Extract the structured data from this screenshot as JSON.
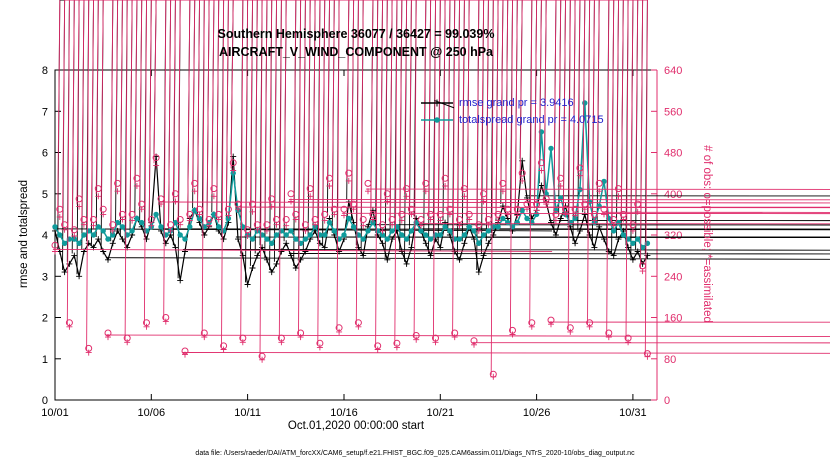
{
  "page": {
    "caption": "data file: /Users/raeder/DAI/ATM_forcXX/CAM6_setup/f.e21.FHIST_BGC.f09_025.CAM6assim.011/Diags_NTrS_2020-10/obs_diag_output.nc"
  },
  "chart_data": {
    "type": "line",
    "title": "Southern Hemisphere 36077 / 36427 = 99.039%",
    "subtitle": "AIRCRAFT_V_WIND_COMPONENT @ 250 hPa",
    "xlabel": "Oct.01,2020 00:00:00 start",
    "legend_text_color": "#2323cc",
    "left_axis": {
      "label": "rmse and totalspread",
      "lim": [
        0,
        8
      ],
      "ticks": [
        0,
        1,
        2,
        3,
        4,
        5,
        6,
        7,
        8
      ],
      "color": "#000000"
    },
    "right_axis": {
      "label": "# of obs: o=possible; *=assimilated",
      "lim": [
        0,
        640
      ],
      "ticks": [
        0,
        80,
        160,
        240,
        320,
        400,
        480,
        560,
        640
      ],
      "color": "#e02d6c"
    },
    "x_axis": {
      "lim_days": [
        0,
        31.25
      ],
      "step_days": 0.25,
      "ticks": [
        {
          "day": 0,
          "label": "10/01"
        },
        {
          "day": 5,
          "label": "10/06"
        },
        {
          "day": 10,
          "label": "10/11"
        },
        {
          "day": 15,
          "label": "10/16"
        },
        {
          "day": 20,
          "label": "10/21"
        },
        {
          "day": 25,
          "label": "10/26"
        },
        {
          "day": 30,
          "label": "10/31"
        }
      ]
    },
    "legend": [
      {
        "label": "rmse grand pr = 3.9416",
        "series": "rmse"
      },
      {
        "label": "totalspread grand pr = 4.0715",
        "series": "totalspread"
      }
    ],
    "series": [
      {
        "id": "rmse",
        "color": "#000000",
        "marker": "asterisk",
        "line": true,
        "axis": "left",
        "values": [
          4.1,
          3.6,
          3.1,
          3.3,
          3.5,
          3.0,
          3.6,
          3.8,
          3.7,
          3.9,
          3.6,
          3.4,
          3.8,
          4.1,
          3.9,
          3.7,
          4.0,
          4.4,
          4.2,
          3.9,
          4.3,
          5.9,
          4.1,
          3.8,
          4.0,
          3.7,
          2.9,
          3.6,
          4.4,
          4.6,
          4.3,
          4.0,
          4.2,
          4.5,
          4.1,
          3.9,
          4.3,
          5.9,
          3.9,
          3.5,
          2.8,
          3.2,
          3.5,
          3.7,
          3.4,
          3.1,
          3.3,
          3.6,
          3.8,
          3.5,
          3.2,
          3.4,
          3.6,
          3.9,
          4.1,
          3.8,
          3.7,
          4.4,
          4.0,
          3.6,
          3.9,
          4.8,
          4.3,
          3.7,
          3.5,
          4.2,
          4.6,
          4.0,
          3.8,
          3.4,
          3.9,
          4.1,
          3.6,
          3.3,
          3.7,
          4.4,
          4.1,
          3.8,
          3.5,
          3.9,
          3.7,
          4.3,
          4.0,
          3.6,
          3.4,
          3.8,
          4.2,
          3.9,
          3.1,
          3.5,
          3.8,
          4.0,
          4.3,
          4.7,
          4.4,
          4.1,
          4.5,
          5.8,
          4.9,
          4.4,
          4.6,
          5.2,
          4.8,
          4.3,
          4.0,
          4.4,
          4.7,
          4.2,
          3.8,
          4.1,
          4.5,
          4.0,
          3.7,
          4.2,
          3.9,
          3.6,
          3.5,
          3.9,
          4.1,
          3.7,
          3.4,
          3.6,
          3.3,
          3.5
        ]
      },
      {
        "id": "totalspread",
        "color": "#0f9b9b",
        "marker": "dot",
        "line": true,
        "axis": "left",
        "values": [
          4.2,
          4.0,
          3.8,
          3.9,
          3.9,
          3.8,
          4.0,
          4.1,
          4.0,
          4.2,
          4.1,
          3.9,
          4.0,
          4.3,
          4.2,
          4.0,
          4.1,
          4.4,
          4.3,
          4.1,
          4.2,
          4.5,
          4.2,
          4.0,
          4.1,
          4.3,
          4.0,
          3.9,
          4.2,
          4.6,
          4.4,
          4.2,
          4.3,
          4.5,
          4.2,
          4.1,
          4.4,
          5.5,
          4.6,
          4.2,
          4.0,
          3.9,
          4.1,
          4.0,
          3.9,
          3.8,
          4.0,
          4.1,
          4.0,
          4.1,
          3.9,
          3.8,
          3.9,
          4.0,
          4.2,
          4.0,
          4.0,
          4.3,
          4.1,
          3.9,
          4.0,
          4.4,
          4.2,
          4.0,
          3.9,
          4.1,
          4.3,
          4.1,
          4.0,
          3.9,
          4.1,
          4.2,
          4.0,
          3.9,
          4.1,
          4.3,
          4.1,
          4.0,
          3.9,
          4.0,
          4.0,
          4.2,
          4.1,
          3.9,
          3.9,
          4.0,
          4.2,
          4.1,
          3.8,
          4.0,
          4.1,
          4.2,
          4.2,
          4.4,
          4.3,
          4.2,
          4.3,
          4.6,
          4.4,
          4.3,
          4.5,
          6.5,
          5.0,
          6.1,
          4.6,
          4.9,
          4.5,
          4.3,
          4.4,
          5.1,
          7.2,
          4.8,
          4.3,
          4.7,
          5.3,
          4.4,
          4.1,
          4.3,
          4.0,
          3.9,
          3.8,
          3.9,
          3.7,
          3.8
        ]
      },
      {
        "id": "possible",
        "color": "#e02d6c",
        "marker": "circle",
        "line": false,
        "axis": "right",
        "values": [
          300,
          370,
          340,
          150,
          330,
          390,
          350,
          100,
          350,
          410,
          370,
          130,
          340,
          420,
          360,
          120,
          360,
          430,
          380,
          150,
          350,
          470,
          390,
          160,
          340,
          400,
          350,
          95,
          360,
          420,
          370,
          130,
          350,
          410,
          360,
          105,
          370,
          460,
          380,
          120,
          330,
          380,
          340,
          85,
          340,
          390,
          350,
          120,
          350,
          400,
          360,
          130,
          340,
          410,
          350,
          110,
          360,
          430,
          370,
          140,
          370,
          440,
          380,
          150,
          350,
          420,
          360,
          105,
          340,
          400,
          350,
          110,
          360,
          410,
          370,
          125,
          350,
          420,
          360,
          120,
          360,
          430,
          370,
          130,
          350,
          410,
          360,
          115,
          340,
          400,
          350,
          50,
          360,
          420,
          370,
          135,
          370,
          440,
          380,
          150,
          380,
          460,
          390,
          155,
          360,
          430,
          370,
          140,
          370,
          450,
          380,
          150,
          360,
          420,
          370,
          130,
          350,
          410,
          360,
          120,
          340,
          380,
          260,
          90
        ]
      },
      {
        "id": "assimilated",
        "color": "#e02d6c",
        "marker": "asterisk",
        "line": false,
        "axis": "right",
        "values": [
          288,
          355,
          330,
          142,
          318,
          375,
          340,
          92,
          338,
          395,
          360,
          122,
          328,
          405,
          350,
          112,
          348,
          415,
          370,
          142,
          338,
          455,
          380,
          152,
          328,
          385,
          340,
          88,
          348,
          405,
          360,
          122,
          338,
          395,
          350,
          98,
          358,
          445,
          370,
          112,
          318,
          365,
          330,
          78,
          328,
          375,
          340,
          112,
          338,
          385,
          350,
          122,
          328,
          395,
          340,
          102,
          348,
          415,
          360,
          132,
          358,
          425,
          370,
          142,
          338,
          405,
          350,
          98,
          328,
          385,
          340,
          102,
          348,
          395,
          360,
          117,
          338,
          405,
          350,
          112,
          348,
          415,
          360,
          122,
          338,
          395,
          350,
          107,
          328,
          385,
          340,
          45,
          348,
          405,
          360,
          127,
          358,
          425,
          370,
          142,
          368,
          445,
          380,
          147,
          348,
          415,
          360,
          132,
          358,
          435,
          370,
          142,
          348,
          405,
          360,
          122,
          338,
          395,
          350,
          112,
          328,
          365,
          250,
          84
        ]
      }
    ]
  }
}
